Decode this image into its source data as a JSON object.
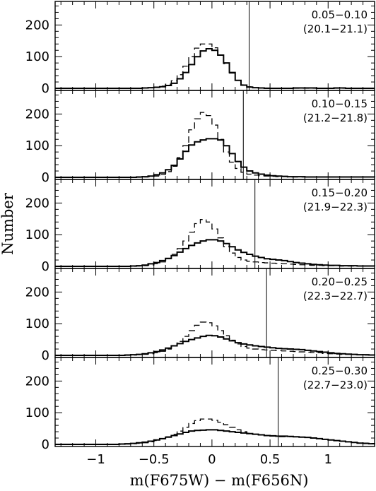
{
  "chart_data": {
    "type": "step-histogram",
    "xlabel": "m(F675W) − m(F656N)",
    "ylabel": "Number",
    "xlim": [
      -1.35,
      1.4
    ],
    "ylim": [
      0,
      270
    ],
    "x_ticks": [
      -1,
      -0.5,
      0,
      0.5,
      1
    ],
    "x_tick_labels": [
      "−1",
      "−0.5",
      "0",
      "0.5",
      "1"
    ],
    "y_ticks": [
      0,
      100,
      200
    ],
    "y_tick_labels": [
      "0",
      "100",
      "200"
    ],
    "bin_width": 0.05,
    "bin_start": -1.35,
    "panels": [
      {
        "label": "0.05−0.10",
        "sublabel": "(20.1−21.1)",
        "cut": 0.32,
        "solid": [
          0,
          0,
          0,
          0,
          0,
          0,
          0,
          0,
          0,
          0,
          0,
          0,
          0,
          0,
          0,
          1,
          2,
          3,
          5,
          9,
          16,
          30,
          50,
          75,
          100,
          118,
          125,
          120,
          105,
          80,
          50,
          25,
          10,
          4,
          2,
          1,
          0,
          0,
          0,
          0,
          0,
          1,
          1,
          1,
          1,
          0,
          0,
          0,
          1,
          1,
          0,
          0,
          0,
          0,
          0
        ],
        "dashed": [
          0,
          0,
          0,
          0,
          0,
          0,
          0,
          0,
          0,
          0,
          0,
          0,
          0,
          0,
          0,
          1,
          2,
          4,
          7,
          13,
          24,
          43,
          70,
          100,
          127,
          140,
          140,
          128,
          105,
          78,
          48,
          25,
          11,
          5,
          2,
          1,
          1,
          0,
          0,
          0,
          0,
          0,
          0,
          0,
          0,
          0,
          0,
          0,
          0,
          0,
          0,
          0,
          0,
          0,
          0
        ]
      },
      {
        "label": "0.10−0.15",
        "sublabel": "(21.2−21.8)",
        "cut": 0.27,
        "solid": [
          0,
          0,
          0,
          0,
          0,
          0,
          0,
          0,
          0,
          0,
          0,
          0,
          0,
          0,
          1,
          2,
          4,
          8,
          14,
          24,
          38,
          58,
          82,
          102,
          112,
          118,
          122,
          122,
          118,
          100,
          75,
          50,
          32,
          20,
          14,
          10,
          7,
          5,
          4,
          3,
          2,
          2,
          2,
          1,
          1,
          1,
          1,
          1,
          1,
          1,
          1,
          1,
          1,
          1,
          1
        ],
        "dashed": [
          0,
          0,
          0,
          0,
          0,
          0,
          0,
          0,
          0,
          0,
          0,
          0,
          0,
          0,
          0,
          1,
          2,
          4,
          9,
          18,
          35,
          62,
          100,
          150,
          185,
          205,
          195,
          165,
          120,
          80,
          48,
          28,
          16,
          10,
          7,
          5,
          4,
          3,
          2,
          2,
          1,
          1,
          1,
          1,
          1,
          1,
          1,
          1,
          1,
          1,
          1,
          1,
          1,
          1,
          1
        ]
      },
      {
        "label": "0.15−0.20",
        "sublabel": "(21.9−22.3)",
        "cut": 0.37,
        "solid": [
          0,
          0,
          0,
          0,
          0,
          0,
          0,
          0,
          0,
          0,
          0,
          0,
          0,
          1,
          2,
          4,
          8,
          12,
          18,
          25,
          34,
          45,
          56,
          66,
          74,
          80,
          84,
          84,
          80,
          72,
          62,
          52,
          44,
          38,
          32,
          28,
          24,
          22,
          20,
          18,
          15,
          12,
          10,
          8,
          6,
          5,
          4,
          3,
          3,
          2,
          2,
          2,
          1,
          1,
          1
        ],
        "dashed": [
          0,
          0,
          0,
          0,
          0,
          0,
          0,
          0,
          0,
          0,
          0,
          0,
          0,
          0,
          1,
          2,
          4,
          8,
          14,
          24,
          38,
          56,
          80,
          108,
          135,
          148,
          140,
          118,
          90,
          62,
          42,
          28,
          20,
          16,
          14,
          12,
          11,
          10,
          9,
          8,
          7,
          6,
          5,
          4,
          3,
          3,
          2,
          2,
          2,
          1,
          1,
          1,
          1,
          1,
          1
        ]
      },
      {
        "label": "0.20−0.25",
        "sublabel": "(22.3−22.7)",
        "cut": 0.47,
        "solid": [
          0,
          0,
          0,
          0,
          0,
          0,
          0,
          0,
          0,
          0,
          0,
          0,
          1,
          2,
          3,
          5,
          8,
          12,
          17,
          23,
          30,
          37,
          44,
          50,
          55,
          60,
          63,
          62,
          58,
          52,
          46,
          40,
          36,
          33,
          30,
          28,
          26,
          24,
          22,
          21,
          20,
          19,
          18,
          16,
          14,
          12,
          10,
          8,
          6,
          5,
          4,
          3,
          2,
          2,
          1
        ],
        "dashed": [
          0,
          0,
          0,
          0,
          0,
          0,
          0,
          0,
          0,
          0,
          0,
          0,
          0,
          1,
          2,
          3,
          5,
          8,
          13,
          20,
          30,
          44,
          60,
          78,
          95,
          105,
          103,
          93,
          78,
          62,
          48,
          36,
          28,
          23,
          20,
          18,
          17,
          16,
          15,
          14,
          13,
          12,
          11,
          10,
          9,
          8,
          6,
          5,
          4,
          3,
          3,
          2,
          2,
          1,
          1
        ]
      },
      {
        "label": "0.25−0.30",
        "sublabel": "(22.7−23.0)",
        "cut": 0.57,
        "solid": [
          0,
          0,
          0,
          0,
          0,
          0,
          0,
          0,
          0,
          0,
          0,
          1,
          2,
          3,
          5,
          7,
          10,
          14,
          18,
          23,
          28,
          33,
          38,
          42,
          44,
          45,
          46,
          46,
          44,
          42,
          40,
          38,
          36,
          34,
          32,
          30,
          28,
          27,
          26,
          26,
          25,
          24,
          23,
          22,
          20,
          18,
          16,
          14,
          12,
          10,
          8,
          6,
          4,
          3,
          2
        ],
        "dashed": [
          0,
          0,
          0,
          0,
          0,
          0,
          0,
          0,
          0,
          0,
          0,
          0,
          1,
          2,
          3,
          5,
          8,
          12,
          17,
          24,
          32,
          42,
          54,
          66,
          75,
          80,
          80,
          76,
          70,
          62,
          54,
          46,
          40,
          35,
          32,
          30,
          28,
          26,
          24,
          24,
          24,
          24,
          23,
          22,
          20,
          18,
          16,
          14,
          12,
          10,
          8,
          6,
          5,
          4,
          3
        ]
      }
    ]
  }
}
